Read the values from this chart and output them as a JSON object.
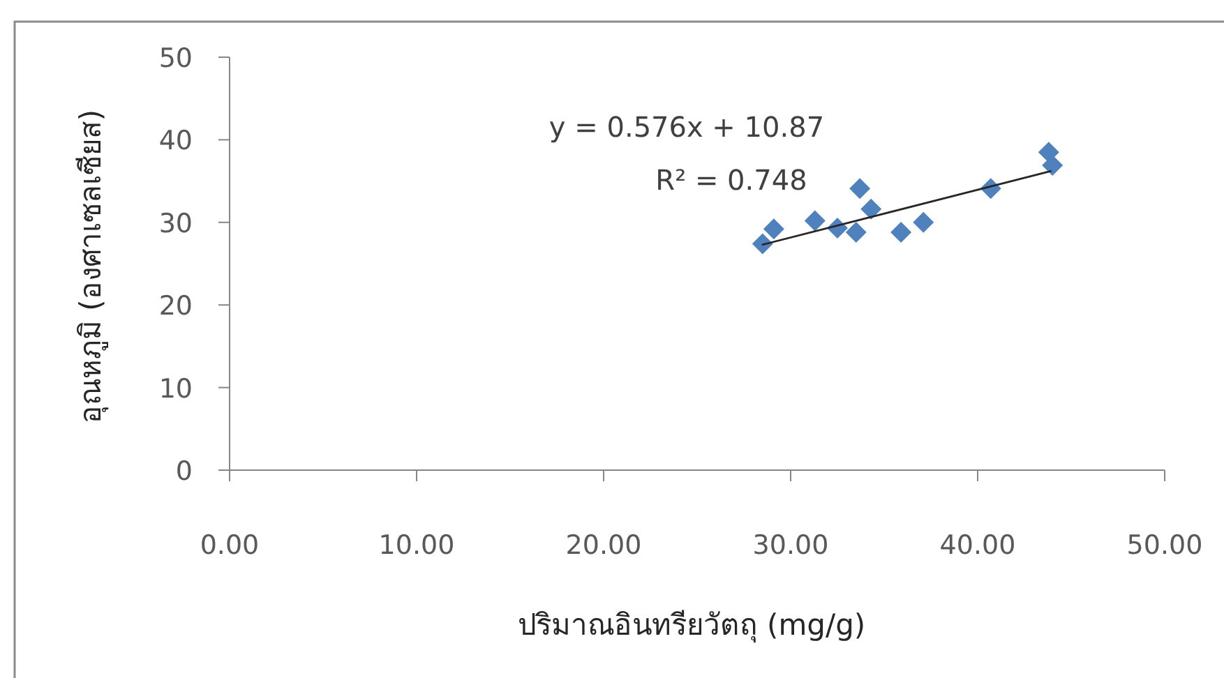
{
  "chart_data": {
    "type": "scatter",
    "xlabel": "ปริมาณอินทรียวัตถุ (mg/g)",
    "ylabel": "อุณหภูมิ (องศาเซลเซียส)",
    "annotations": [
      "y = 0.576x + 10.87",
      "R² = 0.748"
    ],
    "xlim": [
      0,
      50
    ],
    "ylim": [
      0,
      50
    ],
    "xticks": [
      {
        "value": 0,
        "label": "0.00"
      },
      {
        "value": 10,
        "label": "10.00"
      },
      {
        "value": 20,
        "label": "20.00"
      },
      {
        "value": 30,
        "label": "30.00"
      },
      {
        "value": 40,
        "label": "40.00"
      },
      {
        "value": 50,
        "label": "50.00"
      }
    ],
    "yticks": [
      0,
      10,
      20,
      30,
      40,
      50
    ],
    "marker": "diamond",
    "series": [
      {
        "color": "#4f81bd",
        "x": [
          28.5,
          29.1,
          31.3,
          32.5,
          33.5,
          33.7,
          34.3,
          35.9,
          37.1,
          40.7,
          43.8,
          44.0
        ],
        "values": [
          27.4,
          29.2,
          30.2,
          29.3,
          28.8,
          34.1,
          31.6,
          28.8,
          30.0,
          34.1,
          38.5,
          36.9
        ]
      },
      {
        "type": "line",
        "marker": "none",
        "color": "#262626",
        "x": [
          28.5,
          43.9
        ],
        "values": [
          27.3,
          36.2
        ]
      }
    ]
  }
}
